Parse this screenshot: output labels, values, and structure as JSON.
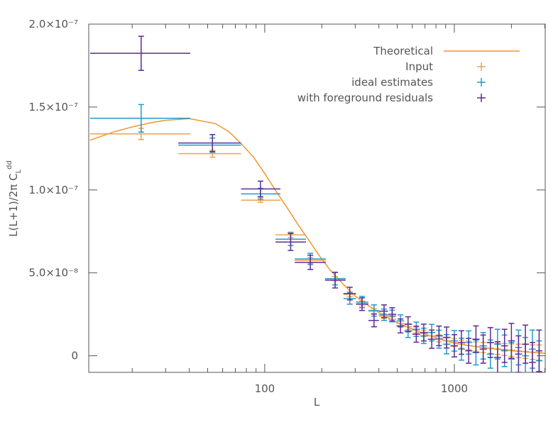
{
  "chart_data": {
    "type": "errorbar",
    "x_label": "L",
    "y_label": {
      "text": "L(L+1)/2π C",
      "sub": "L",
      "sup": "dd"
    },
    "xscale": "log",
    "xlim": [
      11.8,
      3015
    ],
    "xticks": [
      100,
      1000
    ],
    "x_minor_ticks": [
      20,
      30,
      40,
      50,
      60,
      70,
      80,
      90,
      200,
      300,
      400,
      500,
      600,
      700,
      800,
      900,
      2000,
      3000
    ],
    "ylim": [
      -1e-08,
      2e-07
    ],
    "yticks": [
      0,
      {
        "value": 5e-08,
        "label": "5.0×10⁻⁸"
      },
      {
        "value": 1e-07,
        "label": "1.0×10⁻⁷"
      },
      {
        "value": 1.5e-07,
        "label": "1.5×10⁻⁷"
      },
      {
        "value": 2e-07,
        "label": "2.0×10⁻⁷"
      }
    ],
    "legend": "upper right",
    "x": [
      22.3,
      53,
      95,
      137,
      174,
      235,
      281,
      326,
      377,
      426,
      470,
      520,
      570,
      630,
      690,
      760,
      830,
      910,
      1000,
      1090,
      1190,
      1300,
      1420,
      1550,
      1690,
      1840,
      2000,
      2180,
      2370,
      2580,
      2800
    ],
    "x_low": [
      12,
      35,
      75,
      114,
      144,
      208,
      260,
      303,
      352,
      400,
      448,
      495,
      545,
      600,
      660,
      725,
      795,
      870,
      955,
      1045,
      1140,
      1245,
      1360,
      1485,
      1620,
      1765,
      1920,
      2090,
      2275,
      2475,
      2690
    ],
    "x_high": [
      40.5,
      75,
      121,
      165,
      210,
      267,
      303,
      352,
      400,
      447,
      494,
      544,
      599,
      659,
      724,
      794,
      869,
      954,
      1044,
      1139,
      1244,
      1359,
      1484,
      1619,
      1764,
      1919,
      2089,
      2274,
      2474,
      2689,
      2914
    ],
    "series": [
      {
        "name": "Theoretical",
        "kind": "line",
        "color": "#f0962e",
        "x": [
          12,
          16,
          20,
          25,
          30,
          40,
          55,
          65,
          75,
          87,
          100,
          115,
          130,
          150,
          170,
          195,
          220,
          260,
          300,
          350,
          400,
          500,
          600,
          700,
          850,
          1000,
          1250,
          1500,
          2000,
          2500,
          3000
        ],
        "values": [
          1.3e-07,
          1.35e-07,
          1.38e-07,
          1.405e-07,
          1.42e-07,
          1.43e-07,
          1.4e-07,
          1.35e-07,
          1.28e-07,
          1.2e-07,
          1.1e-07,
          9.9e-08,
          9e-08,
          7.9e-08,
          7e-08,
          6e-08,
          5.2e-08,
          4.3e-08,
          3.6e-08,
          3.05e-08,
          2.6e-08,
          2e-08,
          1.6e-08,
          1.3e-08,
          1e-08,
          7.5e-09,
          5.8e-09,
          4.5e-09,
          3e-09,
          2.1e-09,
          1.5e-09
        ]
      },
      {
        "name": "Input",
        "kind": "errorbar",
        "color": "#f0a24a",
        "values": [
          1.338e-07,
          1.219e-07,
          9.38e-08,
          7.29e-08,
          5.75e-08,
          4.65e-08,
          3.71e-08,
          3.15e-08,
          2.69e-08,
          2.39e-08,
          2.2e-08,
          1.95e-08,
          1.75e-08,
          1.55e-08,
          1.35e-08,
          1.2e-08,
          1.05e-08,
          9e-09,
          8e-09,
          7e-09,
          6.2e-09,
          5.6e-09,
          5e-09,
          4.6e-09,
          4.2e-09,
          3.8e-09,
          3.4e-09,
          3e-09,
          2.6e-09,
          2.2e-09,
          1.9e-09
        ],
        "errors": [
          3.4e-09,
          2.1e-09,
          1.3e-09,
          1.7e-09,
          1.7e-09,
          1.3e-09,
          1.5e-09,
          1.5e-09,
          1.5e-09,
          1.5e-09,
          1.5e-09,
          1.6e-09,
          1.7e-09,
          1.8e-09,
          1.9e-09,
          2e-09,
          2.1e-09,
          2.2e-09,
          2.3e-09,
          2.4e-09,
          2.6e-09,
          2.8e-09,
          3e-09,
          3.2e-09,
          3.4e-09,
          3.6e-09,
          3.8e-09,
          4e-09,
          4.2e-09,
          4.4e-09,
          4.6e-09
        ]
      },
      {
        "name": "ideal estimates",
        "kind": "errorbar",
        "color": "#1f9bd1",
        "values": [
          1.432e-07,
          1.27e-07,
          9.76e-08,
          7.03e-08,
          5.84e-08,
          4.65e-08,
          3.45e-08,
          3.24e-08,
          2.73e-08,
          2.47e-08,
          2.4e-08,
          2.1e-08,
          1.5e-08,
          1.6e-08,
          1.2e-08,
          1.4e-08,
          1e-08,
          7e-09,
          9e-09,
          4e-09,
          8e-09,
          2e-09,
          6e-09,
          1e-09,
          7e-09,
          3e-09,
          -2e-09,
          5e-09,
          0,
          4e-09,
          -3e-09
        ],
        "errors": [
          8.3e-09,
          4.3e-09,
          3.4e-09,
          3.8e-09,
          3.4e-09,
          3.8e-09,
          3.4e-09,
          3.4e-09,
          3.4e-09,
          3.4e-09,
          3.5e-09,
          3.7e-09,
          4e-09,
          4.3e-09,
          4.6e-09,
          5e-09,
          5.4e-09,
          5.8e-09,
          6.2e-09,
          6.6e-09,
          7e-09,
          7.5e-09,
          8e-09,
          8.5e-09,
          9e-09,
          9.5e-09,
          1e-08,
          1.05e-08,
          1.1e-08,
          1.15e-08,
          1.2e-08
        ]
      },
      {
        "name": "with foreground residuals",
        "kind": "errorbar",
        "color": "#5b2c96",
        "values": [
          1.824e-07,
          1.283e-07,
          1.006e-07,
          6.86e-08,
          5.63e-08,
          4.56e-08,
          3.75e-08,
          3.11e-08,
          2.13e-08,
          2.69e-08,
          2.5e-08,
          1.8e-08,
          1.9e-08,
          1.3e-08,
          1.4e-08,
          1e-08,
          1.2e-08,
          1.1e-08,
          6e-09,
          8e-09,
          3e-09,
          1e-08,
          4e-09,
          8e-09,
          -1e-09,
          6e-09,
          9e-09,
          1e-09,
          7e-09,
          -4e-09,
          3e-09
        ],
        "errors": [
          1.03e-08,
          5.1e-09,
          4.7e-09,
          5.1e-09,
          4.3e-09,
          4.7e-09,
          3.8e-09,
          3.8e-09,
          3.8e-09,
          3.8e-09,
          4e-09,
          4.2e-09,
          4.5e-09,
          4.8e-09,
          5.1e-09,
          5.5e-09,
          5.9e-09,
          6.3e-09,
          6.7e-09,
          7.1e-09,
          7.5e-09,
          8e-09,
          8.5e-09,
          9e-09,
          9.5e-09,
          1e-08,
          1.05e-08,
          1.1e-08,
          1.15e-08,
          1.2e-08,
          1.25e-08
        ]
      }
    ]
  }
}
